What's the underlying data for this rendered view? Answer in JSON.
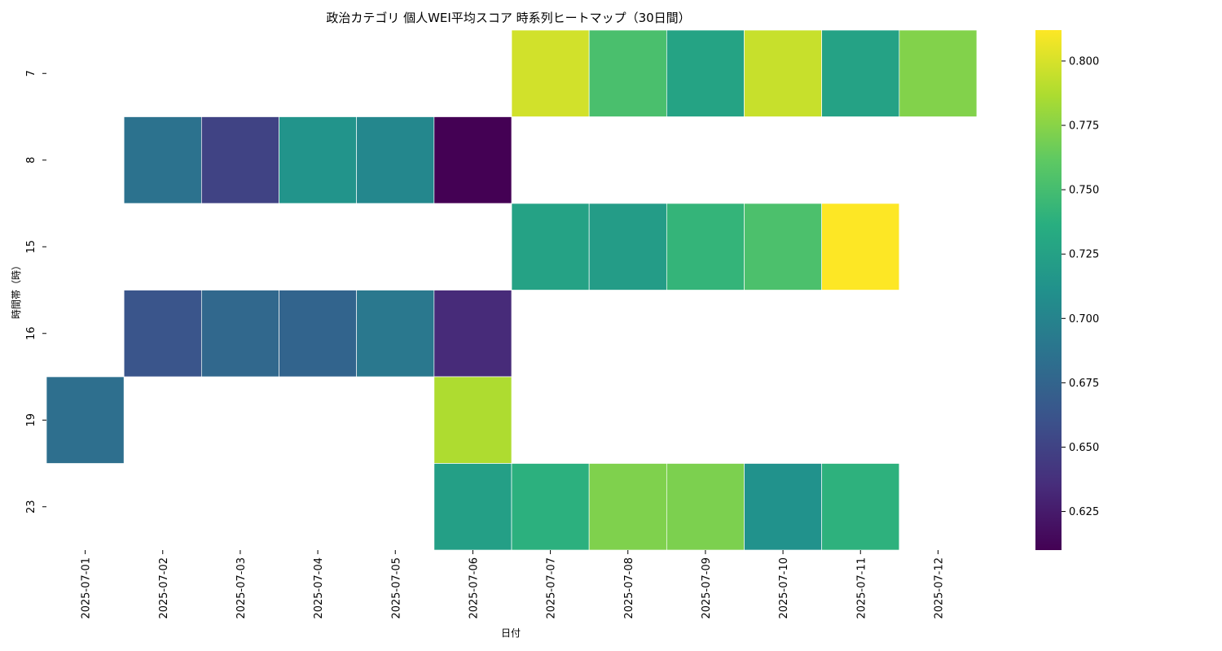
{
  "chart_data": {
    "type": "heatmap",
    "title": "政治カテゴリ 個人WEI平均スコア 時系列ヒートマップ（30日間）",
    "xlabel": "日付",
    "ylabel": "時間帯（時）",
    "x": [
      "2025-07-01",
      "2025-07-02",
      "2025-07-03",
      "2025-07-04",
      "2025-07-05",
      "2025-07-06",
      "2025-07-07",
      "2025-07-08",
      "2025-07-09",
      "2025-07-10",
      "2025-07-11",
      "2025-07-12"
    ],
    "y": [
      "7",
      "8",
      "15",
      "16",
      "19",
      "23"
    ],
    "values": [
      [
        null,
        null,
        null,
        null,
        null,
        null,
        0.798,
        0.752,
        0.727,
        0.795,
        0.726,
        0.773
      ],
      [
        null,
        0.686,
        0.65,
        0.714,
        0.703,
        0.61,
        null,
        null,
        null,
        null,
        null,
        null
      ],
      [
        null,
        null,
        null,
        null,
        null,
        null,
        0.726,
        0.721,
        0.742,
        0.753,
        0.812,
        null
      ],
      [
        null,
        0.663,
        0.678,
        0.675,
        0.691,
        0.634,
        null,
        null,
        null,
        null,
        null,
        null
      ],
      [
        0.683,
        null,
        null,
        null,
        null,
        0.787,
        null,
        null,
        null,
        null,
        null,
        null
      ],
      [
        null,
        null,
        null,
        null,
        null,
        0.723,
        0.738,
        0.772,
        0.771,
        0.712,
        0.739,
        null
      ]
    ],
    "colorbar": {
      "colormap": "viridis",
      "range": [
        0.61,
        0.812
      ],
      "ticks": [
        "0.625",
        "0.650",
        "0.675",
        "0.700",
        "0.725",
        "0.750",
        "0.775",
        "0.800"
      ]
    },
    "grid": false,
    "legend": "colorbar-right"
  }
}
